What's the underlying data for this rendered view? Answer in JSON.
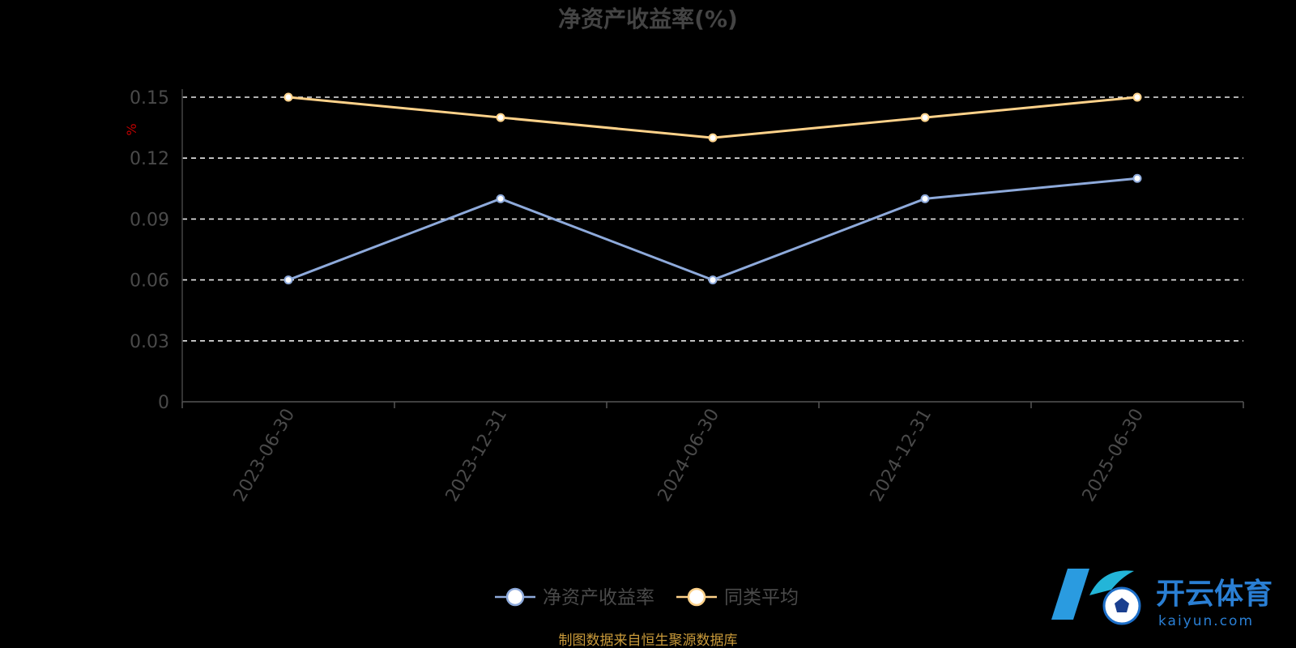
{
  "chart_data": {
    "type": "line",
    "title": "净资产收益率(%)",
    "ylabel": "%",
    "categories": [
      "2023-06-30",
      "2023-12-31",
      "2024-06-30",
      "2024-12-31",
      "2025-06-30"
    ],
    "series": [
      {
        "name": "净资产收益率",
        "values": [
          0.06,
          0.1,
          0.06,
          0.1,
          0.11
        ],
        "color": "#8eaadb"
      },
      {
        "name": "同类平均",
        "values": [
          0.15,
          0.14,
          0.13,
          0.14,
          0.15
        ],
        "color": "#ffd28a"
      }
    ],
    "ylim": [
      0,
      0.15
    ],
    "yticks": [
      "0",
      "0.03",
      "0.06",
      "0.09",
      "0.12",
      "0.15"
    ],
    "grid": true,
    "legend_position": "bottom-center"
  },
  "source": "制图数据来自恒生聚源数据库",
  "watermark": {
    "name": "开云体育",
    "domain": "kaiyun.com"
  }
}
